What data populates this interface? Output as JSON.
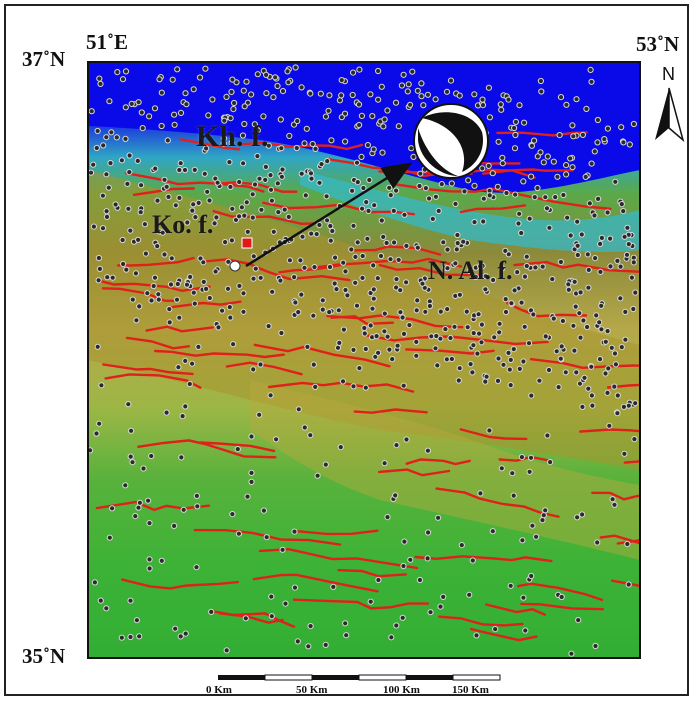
{
  "map": {
    "coordinates": {
      "top_left_lat": "37˚N",
      "top_left_lon": "51˚E",
      "top_right_lat": "53˚N",
      "bottom_left_lat": "35˚N"
    },
    "north_arrow": {
      "letter": "N"
    },
    "faults": {
      "kh": "Kh. f.",
      "ko": "Ko. f.",
      "nal": "N. Al. f."
    },
    "scale_bar": {
      "labels": [
        "0 Km",
        "50 Km",
        "100 Km",
        "150 Km"
      ]
    },
    "legend_colors": {
      "sea": "#1010e0",
      "fault_lines": "#e0201a",
      "epicenter_main": "#e01818",
      "epicenter_secondary": "#ffffff",
      "seismicity_points": "#2a2a2a"
    },
    "focal_mechanism": {
      "icon": "beachball-icon"
    }
  }
}
